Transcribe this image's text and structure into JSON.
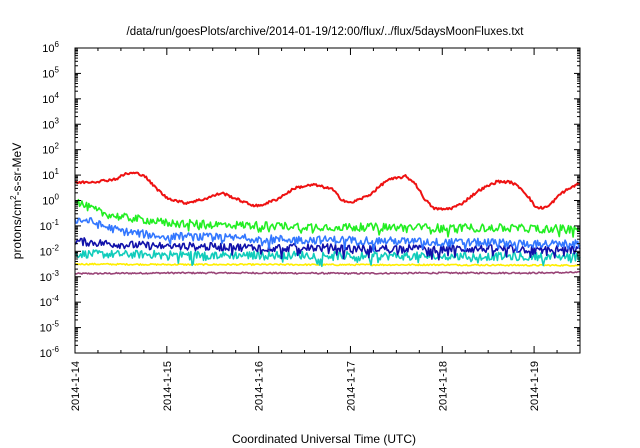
{
  "chart_data": {
    "type": "line",
    "title": "/data/run/goesPlots/archive/2014-01-19/12:00/flux/../flux/5daysMoonFluxes.txt",
    "xlabel": "Coordinated Universal Time (UTC)",
    "ylabel_parts": [
      "protons/cm",
      "2",
      "-s-sr-MeV"
    ],
    "y_scale": "log",
    "ylim_exponents": [
      -6,
      6
    ],
    "y_ticks": [
      {
        "base": "10",
        "exp": "-6"
      },
      {
        "base": "10",
        "exp": "-5"
      },
      {
        "base": "10",
        "exp": "-4"
      },
      {
        "base": "10",
        "exp": "-3"
      },
      {
        "base": "10",
        "exp": "-2"
      },
      {
        "base": "10",
        "exp": "-1"
      },
      {
        "base": "10",
        "exp": "0"
      },
      {
        "base": "10",
        "exp": "1"
      },
      {
        "base": "10",
        "exp": "2"
      },
      {
        "base": "10",
        "exp": "3"
      },
      {
        "base": "10",
        "exp": "4"
      },
      {
        "base": "10",
        "exp": "5"
      },
      {
        "base": "10",
        "exp": "6"
      }
    ],
    "xlim_days": [
      0,
      5.5
    ],
    "x_ticks": [
      {
        "label": "2014-1-14",
        "day": 0
      },
      {
        "label": "2014-1-15",
        "day": 1
      },
      {
        "label": "2014-1-16",
        "day": 2
      },
      {
        "label": "2014-1-17",
        "day": 3
      },
      {
        "label": "2014-1-18",
        "day": 4
      },
      {
        "label": "2014-1-19",
        "day": 5
      }
    ],
    "grid": false,
    "legend": "none",
    "series": [
      {
        "color": "#ee1111",
        "kind": "smooth",
        "days": [
          0,
          0.25,
          0.45,
          0.55,
          0.65,
          0.75,
          0.85,
          1.0,
          1.2,
          1.4,
          1.6,
          1.8,
          1.9,
          2.0,
          2.2,
          2.4,
          2.6,
          2.8,
          2.9,
          3.0,
          3.2,
          3.4,
          3.6,
          3.7,
          3.8,
          3.9,
          4.0,
          4.1,
          4.2,
          4.4,
          4.6,
          4.75,
          4.85,
          4.95,
          5.0,
          5.05,
          5.15,
          5.3,
          5.45,
          5.5
        ],
        "log10_values": [
          0.7,
          0.75,
          0.85,
          1.05,
          1.08,
          1.0,
          0.6,
          0.1,
          -0.1,
          0.05,
          0.3,
          0.0,
          -0.15,
          -0.22,
          0.05,
          0.5,
          0.62,
          0.45,
          0.05,
          -0.1,
          0.2,
          0.8,
          0.95,
          0.7,
          0.1,
          -0.3,
          -0.35,
          -0.3,
          -0.15,
          0.4,
          0.75,
          0.72,
          0.5,
          0.1,
          -0.2,
          -0.3,
          -0.25,
          0.3,
          0.6,
          0.7
        ]
      },
      {
        "color": "#22ee22",
        "kind": "noisy",
        "days": [
          0,
          0.1,
          0.3,
          0.5,
          0.8,
          1.0,
          1.5,
          2.0,
          2.5,
          3.0,
          3.5,
          4.0,
          4.5,
          5.0,
          5.5
        ],
        "log10_values": [
          0.05,
          -0.2,
          -0.5,
          -0.65,
          -0.78,
          -0.88,
          -0.95,
          -0.98,
          -1.02,
          -1.05,
          -1.05,
          -1.08,
          -1.08,
          -1.1,
          -1.12
        ]
      },
      {
        "color": "#3377ff",
        "kind": "noisy",
        "days": [
          0,
          0.15,
          0.3,
          0.5,
          0.8,
          1.0,
          1.5,
          2.0,
          2.5,
          3.0,
          3.5,
          4.0,
          4.5,
          5.0,
          5.5
        ],
        "log10_values": [
          -0.75,
          -0.8,
          -1.0,
          -1.2,
          -1.35,
          -1.4,
          -1.45,
          -1.5,
          -1.55,
          -1.55,
          -1.6,
          -1.65,
          -1.65,
          -1.7,
          -1.72
        ]
      },
      {
        "color": "#1111aa",
        "kind": "noisy",
        "days": [
          0,
          0.3,
          0.6,
          1.0,
          1.5,
          2.0,
          2.5,
          3.0,
          3.5,
          4.0,
          4.5,
          5.0,
          5.5
        ],
        "log10_values": [
          -1.6,
          -1.68,
          -1.75,
          -1.8,
          -1.82,
          -1.85,
          -1.85,
          -1.88,
          -1.88,
          -1.9,
          -1.9,
          -1.92,
          -1.95
        ]
      },
      {
        "color": "#11ccbb",
        "kind": "noisy",
        "days": [
          0,
          0.5,
          1.0,
          1.5,
          2.0,
          2.5,
          3.0,
          3.5,
          4.0,
          4.5,
          5.0,
          5.5
        ],
        "log10_values": [
          -2.1,
          -2.12,
          -2.12,
          -2.15,
          -2.15,
          -2.15,
          -2.18,
          -2.18,
          -2.2,
          -2.2,
          -2.2,
          -2.22
        ]
      },
      {
        "color": "#ffee00",
        "kind": "flat",
        "days": [
          0,
          1.0,
          2.0,
          3.0,
          4.0,
          5.0,
          5.5
        ],
        "log10_values": [
          -2.5,
          -2.52,
          -2.52,
          -2.53,
          -2.53,
          -2.55,
          -2.55
        ]
      },
      {
        "color": "#994477",
        "kind": "flat",
        "days": [
          0,
          1.0,
          2.0,
          3.0,
          4.0,
          5.0,
          5.5
        ],
        "log10_values": [
          -2.88,
          -2.85,
          -2.85,
          -2.87,
          -2.85,
          -2.85,
          -2.83
        ]
      }
    ]
  }
}
